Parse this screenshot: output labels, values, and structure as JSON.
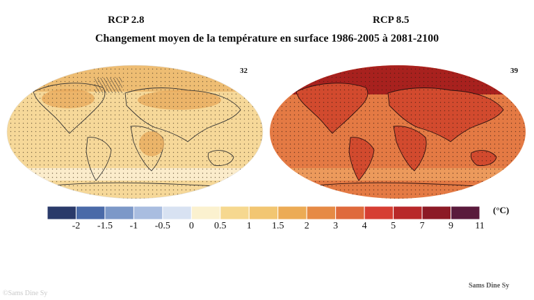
{
  "header": {
    "left_title": "RCP 2.8",
    "right_title": "RCP 8.5",
    "subtitle": "Changement moyen de la température en surface 1986-2005 à 2081-2100"
  },
  "maps": [
    {
      "id": "rcp28",
      "number": "32",
      "base_color": "#f6d899",
      "warm_color": "#eebd73",
      "hot_color": "#e8a85a",
      "cool_color": "#fbeccb"
    },
    {
      "id": "rcp85",
      "number": "39",
      "base_color": "#e47a44",
      "warm_color": "#d24a2e",
      "hot_color": "#a8211e",
      "cool_color": "#ec9a5c"
    }
  ],
  "legend": {
    "unit": "(°C)",
    "colors": [
      "#2a3a6a",
      "#4a6aa8",
      "#7c98c8",
      "#a9bde0",
      "#d8e2f2",
      "#fbf1cf",
      "#f6d88f",
      "#f2c672",
      "#ecab55",
      "#e68a45",
      "#df6a3c",
      "#d63e33",
      "#b8282a",
      "#8c1a26",
      "#5a1a3c"
    ],
    "tick_labels": [
      "-2",
      "-1.5",
      "-1",
      "-0.5",
      "0",
      "0.5",
      "1",
      "1.5",
      "2",
      "3",
      "4",
      "5",
      "7",
      "9",
      "11"
    ]
  },
  "watermarks": {
    "left": "©Sams Dine Sy",
    "right": "Sams Dine Sy"
  }
}
